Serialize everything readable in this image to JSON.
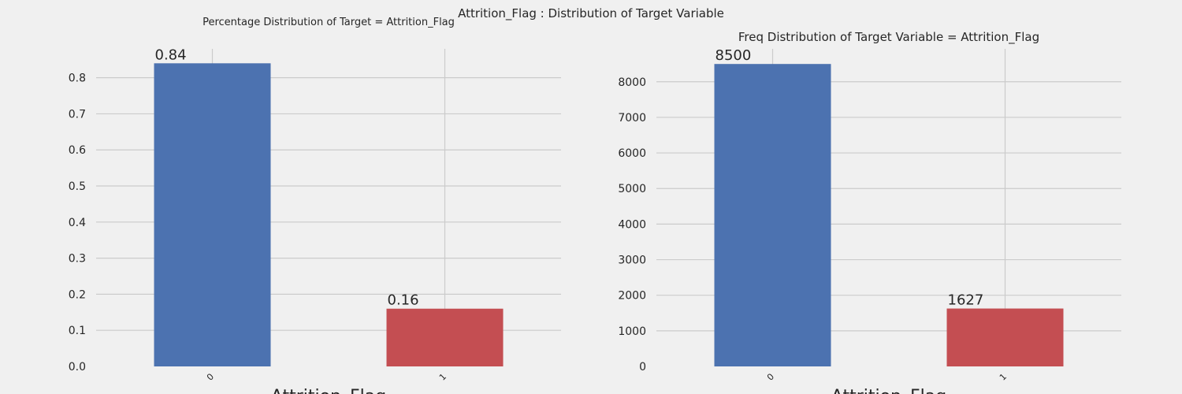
{
  "suptitle": "Attrition_Flag : Distribution of Target Variable",
  "chart_data": [
    {
      "type": "bar",
      "title": "Percentage Distribution of Target = Attrition_Flag",
      "xlabel": "Attrition_Flag",
      "ylabel": "",
      "categories": [
        "0",
        "1"
      ],
      "values": [
        0.84,
        0.16
      ],
      "value_labels": [
        "0.84",
        "0.16"
      ],
      "yticks": [
        "0.0",
        "0.1",
        "0.2",
        "0.3",
        "0.4",
        "0.5",
        "0.6",
        "0.7",
        "0.8"
      ],
      "ylim": [
        0,
        0.88
      ],
      "grid": true,
      "colors": [
        "#4c72b0",
        "#c44e52"
      ]
    },
    {
      "type": "bar",
      "title": "Freq Distribution of Target Variable = Attrition_Flag",
      "xlabel": "Attrition_Flag",
      "ylabel": "",
      "categories": [
        "0",
        "1"
      ],
      "values": [
        8500,
        1627
      ],
      "value_labels": [
        "8500",
        "1627"
      ],
      "yticks": [
        "0",
        "1000",
        "2000",
        "3000",
        "4000",
        "5000",
        "6000",
        "7000",
        "8000"
      ],
      "ylim": [
        0,
        8925
      ],
      "grid": true,
      "colors": [
        "#4c72b0",
        "#c44e52"
      ]
    }
  ]
}
